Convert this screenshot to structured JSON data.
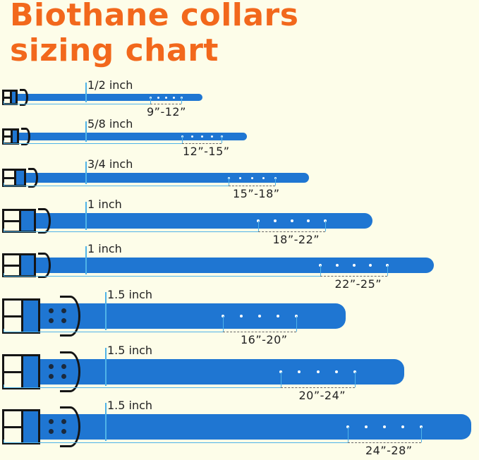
{
  "title": {
    "line1": "Biothane collars",
    "line2": "sizing chart"
  },
  "colors": {
    "title": "#f2681c",
    "strap": "#1f76d2",
    "hardware": "#151515",
    "background": "#fdfde9",
    "guide": "#4fb3e8"
  },
  "collars": [
    {
      "width": "1/2 inch",
      "range": "9”-12”",
      "holes": 5
    },
    {
      "width": "5/8 inch",
      "range": "12”-15”",
      "holes": 5
    },
    {
      "width": "3/4 inch",
      "range": "15”-18”",
      "holes": 5
    },
    {
      "width": "1 inch",
      "range": "18”-22”",
      "holes": 5
    },
    {
      "width": "1 inch",
      "range": "22”-25”",
      "holes": 5
    },
    {
      "width": "1.5 inch",
      "range": "16”-20”",
      "holes": 5
    },
    {
      "width": "1.5 inch",
      "range": "20”-24”",
      "holes": 5
    },
    {
      "width": "1.5 inch",
      "range": "24”-28”",
      "holes": 5
    }
  ]
}
